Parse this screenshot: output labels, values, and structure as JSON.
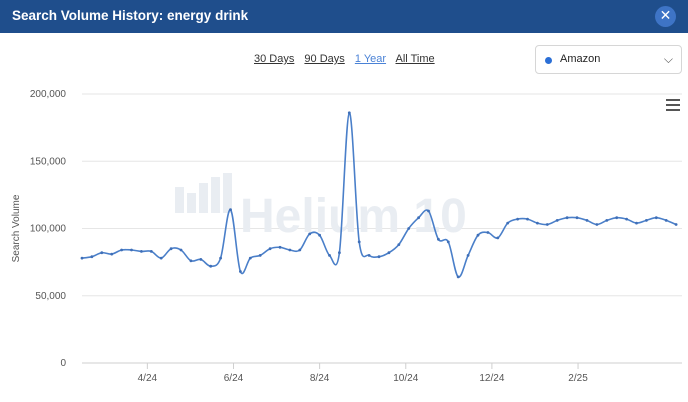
{
  "window": {
    "title": "Search Volume History: energy drink",
    "close_icon": "close-icon"
  },
  "range_tabs": [
    {
      "label": "30 Days",
      "active": false
    },
    {
      "label": "90 Days",
      "active": false
    },
    {
      "label": "1 Year",
      "active": true
    },
    {
      "label": "All Time",
      "active": false
    }
  ],
  "marketplace_select": {
    "value": "Amazon",
    "dot_color": "#2b6fd6"
  },
  "watermark": "Helium 10",
  "colors": {
    "header": "#1f4e8c",
    "line": "#4a7fc9",
    "active_tab": "#4a82d6"
  },
  "chart_data": {
    "type": "line",
    "title": "",
    "xlabel": "",
    "ylabel": "Search Volume",
    "ylim": [
      0,
      200000
    ],
    "yticks": [
      "0",
      "50,000",
      "100,000",
      "150,000",
      "200,000"
    ],
    "yticks_values": [
      0,
      50000,
      100000,
      150000,
      200000
    ],
    "xlim": [
      0,
      60.6
    ],
    "xticks": [
      {
        "label": "4/24",
        "x": 6.6
      },
      {
        "label": "6/24",
        "x": 15.3
      },
      {
        "label": "8/24",
        "x": 24.0
      },
      {
        "label": "10/24",
        "x": 32.7
      },
      {
        "label": "12/24",
        "x": 41.4
      },
      {
        "label": "2/25",
        "x": 50.1
      }
    ],
    "grid": true,
    "series": [
      {
        "name": "",
        "x": [
          0,
          1,
          2,
          3,
          4,
          5,
          6,
          7,
          8,
          9,
          10,
          11,
          12,
          13,
          14,
          15,
          16,
          17,
          18,
          19,
          20,
          21,
          22,
          23,
          24,
          25,
          26,
          27,
          28,
          29,
          30,
          31,
          32,
          33,
          34,
          35,
          36,
          37,
          38,
          39,
          40,
          41,
          42,
          43,
          44,
          45,
          46,
          47,
          48,
          49,
          50,
          51,
          52,
          53,
          54,
          55,
          56,
          57,
          58,
          59,
          60
        ],
        "values": [
          78000,
          79000,
          82000,
          81000,
          84000,
          84000,
          83000,
          83000,
          78000,
          85000,
          84000,
          76000,
          77000,
          72000,
          78000,
          114000,
          68000,
          78000,
          80000,
          85000,
          86000,
          84000,
          84000,
          96000,
          95000,
          80000,
          82000,
          186000,
          90000,
          80000,
          79000,
          82000,
          88000,
          100000,
          108000,
          113000,
          92000,
          90000,
          64000,
          80000,
          95000,
          97000,
          93000,
          104000,
          107000,
          107000,
          104000,
          103000,
          106000,
          108000,
          108000,
          106000,
          103000,
          106000,
          108000,
          107000,
          104000,
          106000,
          108000,
          106000,
          103000
        ]
      }
    ]
  }
}
